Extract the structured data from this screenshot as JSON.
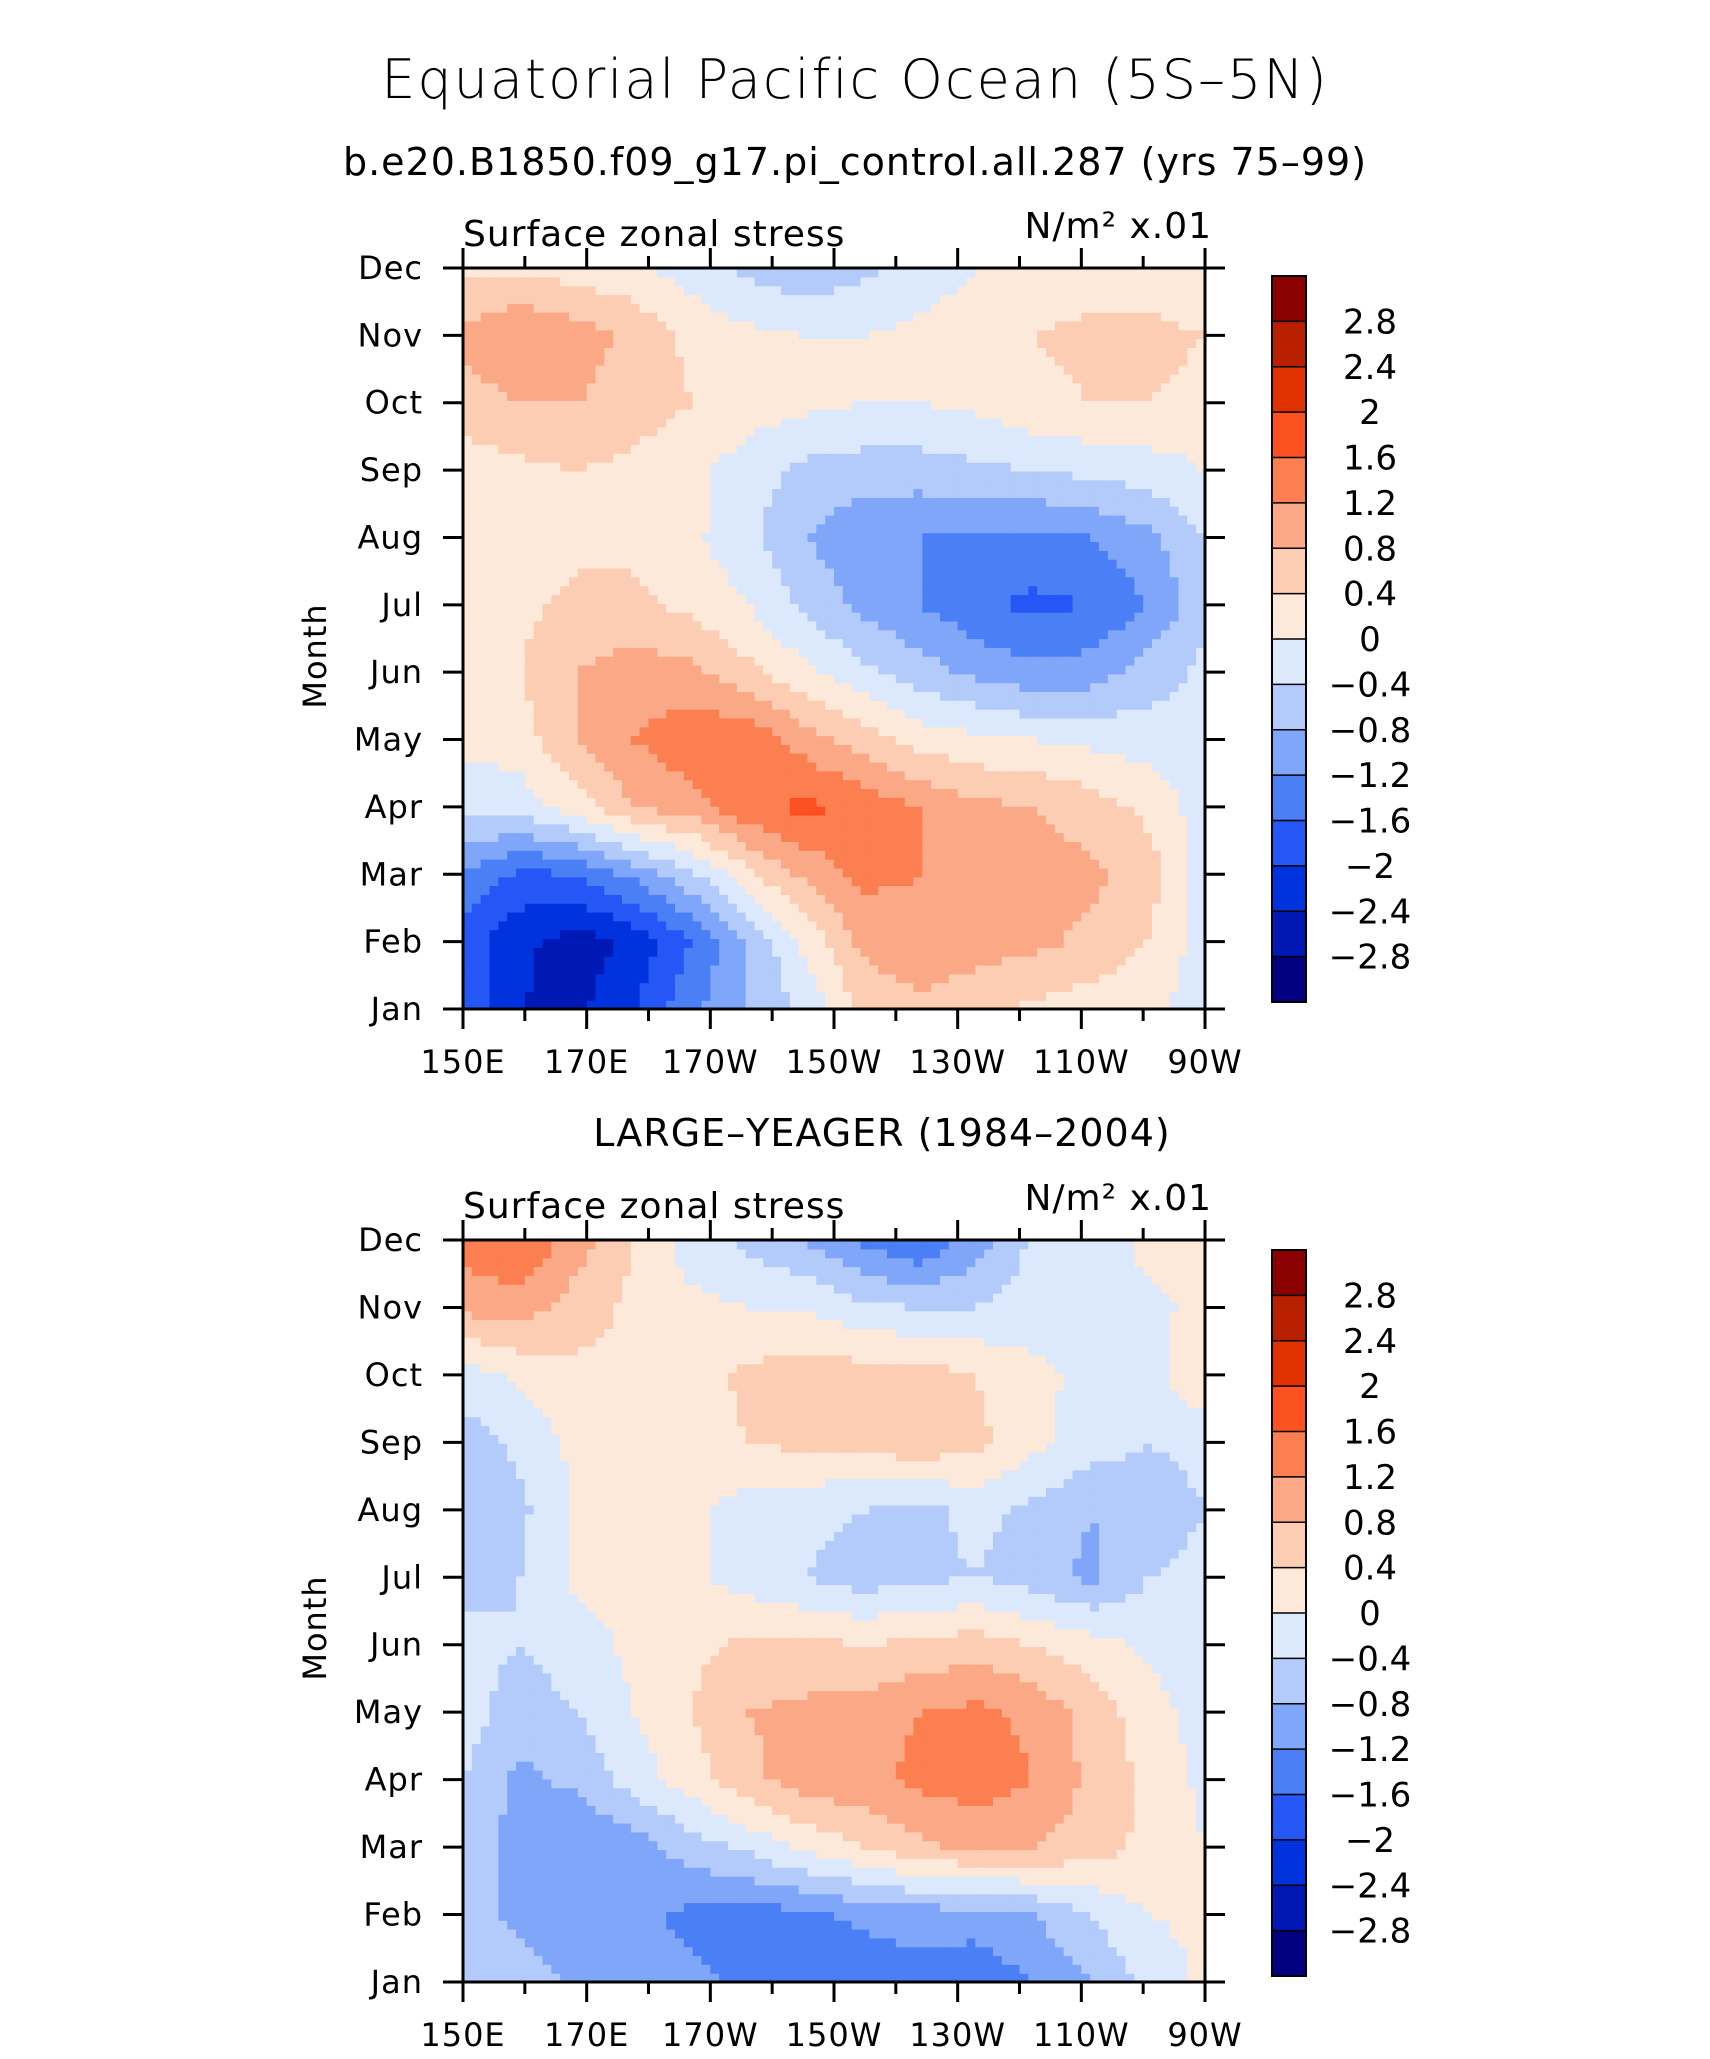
{
  "chart_data": {
    "type": "heatmap",
    "title": "Equatorial Pacific Ocean (5S–5N)",
    "months": [
      "Jan",
      "Feb",
      "Mar",
      "Apr",
      "May",
      "Jun",
      "Jul",
      "Aug",
      "Sep",
      "Oct",
      "Nov",
      "Dec"
    ],
    "lon_ticks": [
      "150E",
      "170E",
      "170W",
      "150W",
      "130W",
      "110W",
      "90W"
    ],
    "lon_range": [
      150,
      270
    ],
    "colorbar": {
      "levels": [
        -2.8,
        -2.4,
        -2,
        -1.6,
        -1.2,
        -0.8,
        -0.4,
        0,
        0.4,
        0.8,
        1.2,
        1.6,
        2,
        2.4,
        2.8
      ],
      "labels": [
        "-2.8",
        "-2.4",
        "-2",
        "-1.6",
        "-1.2",
        "-0.8",
        "-0.4",
        "0",
        "0.4",
        "0.8",
        "1.2",
        "1.6",
        "2",
        "2.4",
        "2.8"
      ],
      "colors": [
        "#000080",
        "#0018b4",
        "#0033dd",
        "#2457f5",
        "#4b7ff5",
        "#7fa6f8",
        "#b3cbfa",
        "#dce9fc",
        "#fde9d9",
        "#fccdb3",
        "#fba886",
        "#fb7f50",
        "#fc5020",
        "#e03200",
        "#b82000",
        "#8b0000"
      ]
    },
    "panels": [
      {
        "subtitle": "b.e20.B1850.f09_g17.pi_control.all.287 (yrs 75–99)",
        "left_label": "Surface zonal stress",
        "units": "N/m² x.01",
        "ylabel": "Month",
        "xlabel_ticks": "lon_ticks",
        "grid": [
          [
            -1.7,
            -2.4,
            -2.5,
            -2.0,
            -1.3,
            -0.8,
            -0.3,
            0.5,
            0.7,
            0.5,
            0.3,
            0.2,
            0.1,
            -0.2
          ],
          [
            -1.8,
            -2.3,
            -2.6,
            -2.3,
            -1.6,
            -0.8,
            0.1,
            0.9,
            1.1,
            1.0,
            0.9,
            0.7,
            0.4,
            -0.2
          ],
          [
            -1.2,
            -1.7,
            -1.6,
            -1.1,
            -0.5,
            0.3,
            0.9,
            1.3,
            1.2,
            1.1,
            1.0,
            0.9,
            0.6,
            -0.2
          ],
          [
            -0.3,
            -0.2,
            0.2,
            0.8,
            1.0,
            1.5,
            1.7,
            1.5,
            1.2,
            0.9,
            0.8,
            0.6,
            0.3,
            -0.2
          ],
          [
            0.1,
            0.2,
            0.8,
            1.2,
            1.5,
            1.5,
            1.0,
            0.6,
            0.2,
            0.1,
            0.0,
            -0.1,
            -0.2,
            -0.3
          ],
          [
            0.3,
            0.4,
            0.8,
            1.0,
            0.9,
            0.5,
            0.1,
            -0.3,
            -0.6,
            -0.9,
            -1.1,
            -1.0,
            -0.6,
            -0.3
          ],
          [
            0.1,
            0.3,
            0.5,
            0.5,
            0.3,
            0.0,
            -0.5,
            -0.9,
            -1.2,
            -1.5,
            -1.7,
            -1.6,
            -1.2,
            -0.5
          ],
          [
            0.0,
            0.2,
            0.3,
            0.3,
            0.1,
            -0.3,
            -0.8,
            -1.1,
            -1.2,
            -1.3,
            -1.3,
            -1.2,
            -0.9,
            -0.4
          ],
          [
            0.2,
            0.3,
            0.4,
            0.3,
            0.1,
            -0.2,
            -0.5,
            -0.6,
            -0.6,
            -0.5,
            -0.4,
            -0.3,
            -0.2,
            0.0
          ],
          [
            0.6,
            0.8,
            0.8,
            0.6,
            0.4,
            0.2,
            0.1,
            0.0,
            0.0,
            0.1,
            0.3,
            0.4,
            0.4,
            0.3
          ],
          [
            0.9,
            1.2,
            1.0,
            0.7,
            0.3,
            0.1,
            0.0,
            0.0,
            0.1,
            0.2,
            0.4,
            0.5,
            0.5,
            0.4
          ],
          [
            0.3,
            0.3,
            0.2,
            0.1,
            -0.2,
            -0.5,
            -0.7,
            -0.5,
            -0.2,
            0.0,
            0.1,
            0.2,
            0.2,
            0.1
          ]
        ]
      },
      {
        "subtitle": "LARGE–YEAGER (1984–2004)",
        "left_label": "Surface zonal stress",
        "units": "N/m² x.01",
        "ylabel": "Month",
        "xlabel_ticks": "lon_ticks",
        "grid": [
          [
            -0.4,
            -0.6,
            -0.9,
            -1.0,
            -1.1,
            -1.3,
            -1.5,
            -1.5,
            -1.4,
            -1.5,
            -1.2,
            -0.8,
            -0.3,
            0.1
          ],
          [
            -0.6,
            -0.9,
            -1.0,
            -1.1,
            -1.3,
            -1.4,
            -1.3,
            -1.1,
            -1.0,
            -1.0,
            -0.8,
            -0.4,
            0.0,
            0.1
          ],
          [
            -0.5,
            -1.0,
            -1.2,
            -1.0,
            -0.6,
            -0.3,
            0.1,
            0.4,
            0.7,
            0.9,
            0.8,
            0.6,
            0.3,
            0.0
          ],
          [
            -0.4,
            -0.9,
            -0.7,
            -0.2,
            0.2,
            0.7,
            1.0,
            1.1,
            1.3,
            1.4,
            1.2,
            0.7,
            0.3,
            -0.1
          ],
          [
            -0.2,
            -0.6,
            -0.4,
            0.0,
            0.4,
            0.8,
            0.9,
            1.0,
            1.2,
            1.3,
            1.1,
            0.6,
            0.2,
            -0.2
          ],
          [
            -0.3,
            -0.4,
            -0.2,
            0.1,
            0.3,
            0.5,
            0.5,
            0.4,
            0.5,
            0.6,
            0.4,
            0.2,
            -0.1,
            -0.3
          ],
          [
            -0.5,
            -0.4,
            0.1,
            0.2,
            0.1,
            -0.2,
            -0.4,
            -0.6,
            -0.5,
            -0.4,
            -0.6,
            -0.9,
            -0.4,
            -0.3
          ],
          [
            -0.8,
            -0.5,
            0.1,
            0.2,
            0.1,
            -0.2,
            -0.3,
            -0.4,
            -0.5,
            -0.3,
            -0.5,
            -0.8,
            -0.6,
            -0.4
          ],
          [
            -0.6,
            -0.3,
            0.1,
            0.2,
            0.2,
            0.4,
            0.5,
            0.5,
            0.7,
            0.5,
            0.1,
            -0.2,
            -0.4,
            -0.3
          ],
          [
            -0.2,
            0.1,
            0.3,
            0.3,
            0.2,
            0.5,
            0.6,
            0.6,
            0.6,
            0.4,
            0.1,
            -0.1,
            -0.2,
            0.4
          ],
          [
            0.9,
            1.0,
            0.6,
            0.3,
            0.1,
            0.0,
            0.0,
            -0.3,
            -0.4,
            -0.4,
            -0.2,
            -0.1,
            -0.1,
            0.1
          ],
          [
            1.4,
            1.6,
            1.0,
            0.4,
            -0.2,
            -0.5,
            -0.8,
            -1.3,
            -1.6,
            -1.0,
            -0.3,
            -0.2,
            0.1,
            0.2
          ]
        ]
      }
    ]
  }
}
